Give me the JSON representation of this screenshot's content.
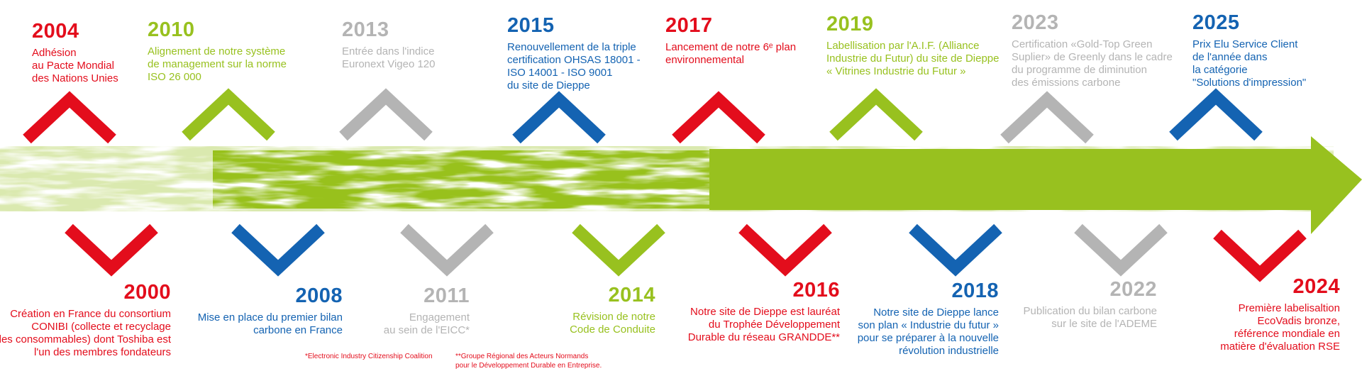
{
  "colors": {
    "red": "#e30d1c",
    "green": "#98c11f",
    "gray": "#b4b4b4",
    "blue": "#1463b2"
  },
  "top_events": [
    {
      "year": "2004",
      "color": "red",
      "lines": [
        "Adhésion",
        "au Pacte Mondial",
        "des Nations Unies"
      ]
    },
    {
      "year": "2010",
      "color": "green",
      "lines": [
        "Alignement de notre système",
        "de management sur la norme",
        "ISO 26 000"
      ]
    },
    {
      "year": "2013",
      "color": "gray",
      "lines": [
        "Entrée dans l'indice",
        "Euronext Vigeo 120"
      ]
    },
    {
      "year": "2015",
      "color": "blue",
      "lines": [
        "Renouvellement de la triple",
        "certification OHSAS 18001 -",
        "ISO 14001 - ISO 9001",
        "du site de Dieppe"
      ]
    },
    {
      "year": "2017",
      "color": "red",
      "lines": [
        "Lancement de notre 6ᵉ plan",
        "environnemental"
      ]
    },
    {
      "year": "2019",
      "color": "green",
      "lines": [
        "Labellisation par l'A.I.F. (Alliance",
        "Industrie du Futur) du site de Dieppe",
        "« Vitrines Industrie du Futur »"
      ]
    },
    {
      "year": "2023",
      "color": "gray",
      "lines": [
        "Certification «Gold-Top Green",
        "Suplier» de Greenly dans le cadre",
        "du programme de diminution",
        "des émissions carbone"
      ]
    },
    {
      "year": "2025",
      "color": "blue",
      "lines": [
        "Prix Elu Service Client",
        "de l'année dans",
        "la catégorie",
        "\"Solutions d'impression\""
      ]
    }
  ],
  "bottom_events": [
    {
      "year": "2000",
      "color": "red",
      "lines": [
        "Création en France du consortium",
        "CONIBI (collecte et recyclage",
        "des consommables) dont Toshiba est",
        "l'un des membres fondateurs"
      ]
    },
    {
      "year": "2008",
      "color": "blue",
      "lines": [
        "Mise en place du premier bilan",
        "carbone en France"
      ]
    },
    {
      "year": "2011",
      "color": "gray",
      "lines": [
        "Engagement",
        "au sein de l'EICC*"
      ]
    },
    {
      "year": "2014",
      "color": "green",
      "lines": [
        "Révision de notre",
        "Code de Conduite"
      ]
    },
    {
      "year": "2016",
      "color": "red",
      "lines": [
        "Notre site de Dieppe est lauréat",
        "du Trophée Développement",
        "Durable du réseau GRANDDE**"
      ]
    },
    {
      "year": "2018",
      "color": "blue",
      "lines": [
        "Notre site de Dieppe lance",
        "son plan « Industrie du futur »",
        "pour se préparer à la nouvelle",
        "révolution industrielle"
      ]
    },
    {
      "year": "2022",
      "color": "gray",
      "lines": [
        "Publication du bilan carbone",
        "sur le site de l'ADEME"
      ]
    },
    {
      "year": "2024",
      "color": "red",
      "lines": [
        "Première labelisaltion",
        "EcoVadis bronze,",
        "référence mondiale en",
        "matière d'évaluation RSE"
      ]
    }
  ],
  "footnotes": [
    {
      "lines": [
        "*Electronic Industry Citizenship Coalition"
      ]
    },
    {
      "lines": [
        "**Groupe Régional des Acteurs Normands",
        "pour le Développement Durable en Entreprise."
      ]
    }
  ]
}
